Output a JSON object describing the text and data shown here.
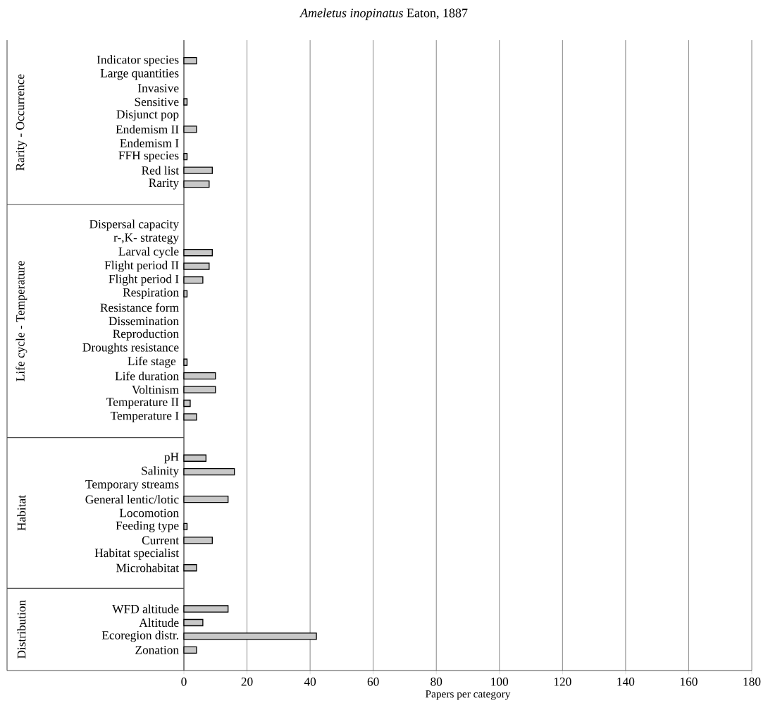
{
  "chart_data": {
    "type": "bar",
    "orientation": "horizontal",
    "title": "*Ameletus inopinatus* Eaton, 1887",
    "xlabel": "Papers per category",
    "categories": [
      "Indicator species",
      "Large quantities",
      "Invasive",
      "Sensitive",
      "Disjunct pop",
      "Endemism II",
      "Endemism I",
      "FFH species",
      "Red list",
      "Rarity",
      null,
      null,
      "Dispersal capacity",
      "r-,K- strategy",
      "Larval cycle",
      "Flight period II",
      "Flight period I",
      "Respiration",
      "Resistance form",
      "Dissemination",
      "Reproduction",
      "Droughts resistance",
      "Life stage ",
      "Life duration",
      "Voltinism",
      "Temperature II",
      "Temperature I",
      null,
      null,
      "pH",
      "Salinity",
      "Temporary streams",
      "General lentic/lotic",
      "Locomotion",
      "Feeding type",
      "Current",
      "Habitat specialist",
      "Microhabitat",
      null,
      null,
      "WFD altitude",
      "Altitude",
      "Ecoregion distr.",
      "Zonation"
    ],
    "values": [
      4,
      null,
      null,
      1,
      null,
      4,
      null,
      1,
      9,
      8,
      null,
      null,
      null,
      null,
      9,
      8,
      6,
      1,
      null,
      null,
      null,
      null,
      1,
      10,
      10,
      2,
      4,
      null,
      null,
      7,
      16,
      null,
      14,
      null,
      1,
      9,
      null,
      4,
      null,
      null,
      14,
      6,
      42,
      4
    ],
    "color": "#c8c8c8",
    "xlim": [
      0,
      180
    ],
    "xticks": [
      0,
      20,
      40,
      60,
      80,
      100,
      120,
      140,
      160,
      180
    ],
    "grid": "x",
    "annotations": [
      "Rarity - Occurrence",
      "Life cycle - Temperature",
      "Habitat",
      "Distribution"
    ]
  }
}
